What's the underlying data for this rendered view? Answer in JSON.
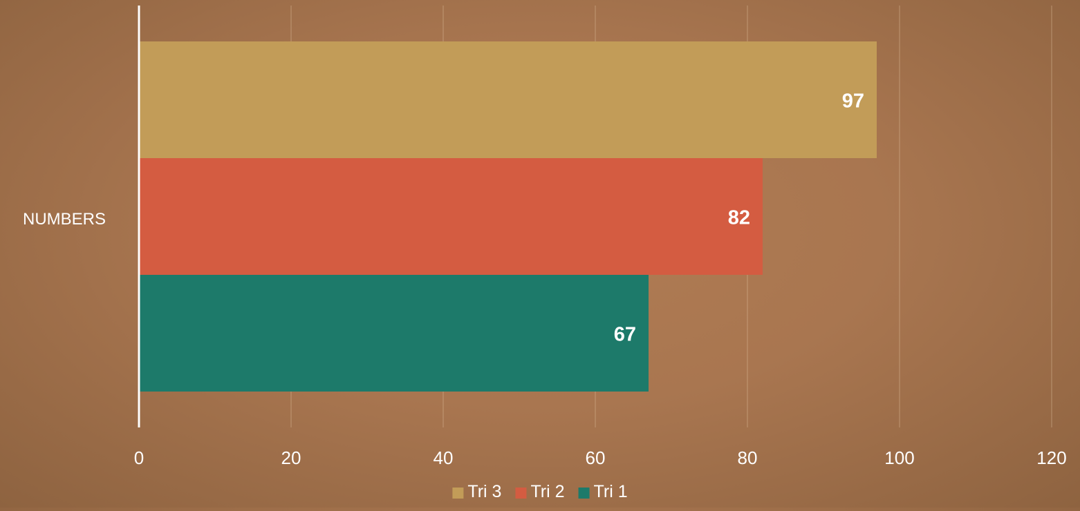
{
  "chart_data": {
    "type": "bar",
    "orientation": "horizontal",
    "categories": [
      "NUMBERS"
    ],
    "series": [
      {
        "name": "Tri 3",
        "values": [
          97
        ],
        "color": "#c29c58"
      },
      {
        "name": "Tri 2",
        "values": [
          82
        ],
        "color": "#d45c41"
      },
      {
        "name": "Tri 1",
        "values": [
          67
        ],
        "color": "#1d7a6a"
      }
    ],
    "xlim": [
      0,
      120
    ],
    "xticks": [
      0,
      20,
      40,
      60,
      80,
      100,
      120
    ],
    "grid": true,
    "data_labels": true,
    "legend": {
      "position": "bottom",
      "items": [
        "Tri 3",
        "Tri 2",
        "Tri 1"
      ]
    },
    "colors": {
      "background": "#a97650",
      "axis": "#ffffff",
      "gridline": "#d8b896",
      "label_text": "#ffffff"
    }
  }
}
